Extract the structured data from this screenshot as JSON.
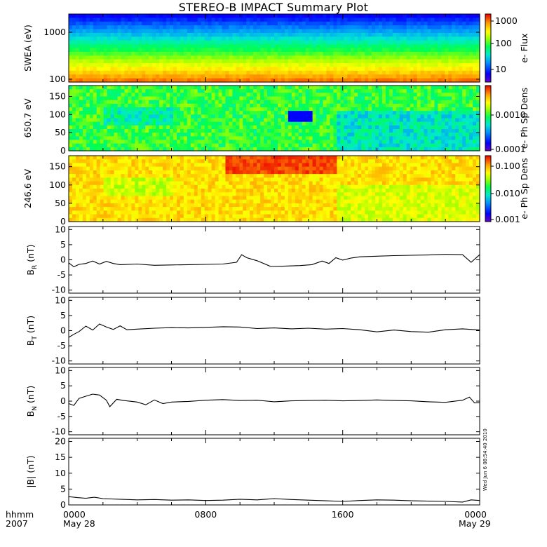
{
  "title": "STEREO-B IMPACT Summary Plot",
  "colors": {
    "line": "#000000",
    "colormap": [
      "#6a00c8",
      "#0000ff",
      "#0080ff",
      "#00e0e0",
      "#00ff60",
      "#80ff00",
      "#ffff00",
      "#ffa000",
      "#ff3000",
      "#e00000"
    ]
  },
  "footer": {
    "left_top": "hhmm",
    "left_bottom": "2007",
    "ticks": [
      {
        "top": "0000",
        "bottom": "May 28"
      },
      {
        "top": "0800",
        "bottom": ""
      },
      {
        "top": "1600",
        "bottom": ""
      },
      {
        "top": "0000",
        "bottom": "May 29"
      }
    ],
    "stamp": "Wed Jun 6 08:54:40 2010"
  },
  "chart_data": [
    {
      "type": "heatmap",
      "ylabel": "SWEA (eV)",
      "yscale": "log",
      "ylim": [
        100,
        2000
      ],
      "y_ticks": [
        "1000",
        "100"
      ],
      "colorbar": {
        "label": "e- Flux",
        "scale": "log",
        "ticks": [
          "1000",
          "100",
          "10"
        ],
        "range": [
          3,
          1500
        ]
      },
      "x_range_hours": [
        0,
        24
      ]
    },
    {
      "type": "heatmap",
      "ylabel": "650.7 eV",
      "ylim": [
        0,
        180
      ],
      "y_ticks": [
        "150",
        "100",
        "50",
        "0"
      ],
      "colorbar": {
        "label": "e- Ph Sp Dens",
        "scale": "log",
        "ticks": [
          "0.0010",
          "0.0001"
        ],
        "range": [
          0.0001,
          0.01
        ]
      },
      "x_range_hours": [
        0,
        24
      ]
    },
    {
      "type": "heatmap",
      "ylabel": "246.6 eV",
      "ylim": [
        0,
        180
      ],
      "y_ticks": [
        "150",
        "100",
        "50",
        "0"
      ],
      "colorbar": {
        "label": "e- Ph Sp Dens",
        "scale": "log",
        "ticks": [
          "0.100",
          "0.010",
          "0.001"
        ],
        "range": [
          0.001,
          0.3
        ]
      },
      "x_range_hours": [
        0,
        24
      ]
    },
    {
      "type": "line",
      "ylabel_main": "B",
      "ylabel_sub": "R",
      "ylabel_unit": "(nT)",
      "ylim": [
        -11,
        11
      ],
      "y_ticks": [
        10,
        5,
        0,
        -5,
        -10
      ],
      "x_hours": [
        0,
        0.3,
        0.6,
        1,
        1.4,
        1.8,
        2.2,
        2.6,
        3,
        4,
        5,
        6,
        7,
        8,
        9,
        9.8,
        10.1,
        10.4,
        11,
        11.8,
        12.5,
        13.5,
        14.2,
        14.8,
        15.2,
        15.6,
        16,
        16.5,
        17,
        18,
        19,
        20,
        21,
        22,
        23,
        23.5,
        24
      ],
      "y": [
        -1,
        -2.3,
        -1.5,
        -1.2,
        -0.4,
        -1.4,
        -0.5,
        -1.2,
        -1.6,
        -1.4,
        -1.8,
        -1.7,
        -1.6,
        -1.5,
        -1.4,
        -0.8,
        1.7,
        0.7,
        -0.3,
        -2.2,
        -2.1,
        -1.9,
        -1.6,
        -0.4,
        -1.2,
        0.7,
        -0.1,
        0.6,
        1.0,
        1.2,
        1.4,
        1.5,
        1.6,
        1.8,
        1.7,
        -0.8,
        1.7
      ]
    },
    {
      "type": "line",
      "ylabel_main": "B",
      "ylabel_sub": "T",
      "ylabel_unit": "(nT)",
      "ylim": [
        -11,
        11
      ],
      "y_ticks": [
        10,
        5,
        0,
        -5,
        -10
      ],
      "x_hours": [
        0,
        0.3,
        0.6,
        1,
        1.4,
        1.8,
        2.2,
        2.6,
        3,
        3.4,
        4,
        5,
        6,
        7,
        8,
        9,
        10,
        11,
        12,
        13,
        14,
        15,
        16,
        17,
        18,
        19,
        20,
        21,
        22,
        23,
        24
      ],
      "y": [
        -2.2,
        -1.2,
        -0.3,
        1.5,
        0.2,
        2.2,
        1.2,
        0.4,
        1.6,
        0.3,
        0.5,
        0.8,
        1.0,
        0.9,
        1.1,
        1.3,
        1.2,
        0.7,
        0.9,
        0.6,
        0.8,
        0.5,
        0.7,
        0.3,
        -0.4,
        0.2,
        -0.3,
        -0.5,
        0.3,
        0.6,
        0.2
      ]
    },
    {
      "type": "line",
      "ylabel_main": "B",
      "ylabel_sub": "N",
      "ylabel_unit": "(nT)",
      "ylim": [
        -11,
        11
      ],
      "y_ticks": [
        10,
        5,
        0,
        -5,
        -10
      ],
      "x_hours": [
        0,
        0.3,
        0.6,
        1,
        1.4,
        1.8,
        2.2,
        2.4,
        2.8,
        3.2,
        4,
        4.5,
        5,
        5.5,
        6,
        7,
        8,
        9,
        10,
        11,
        12,
        13,
        14,
        15,
        16,
        17,
        18,
        19,
        20,
        21,
        22,
        23,
        23.4,
        23.7,
        24
      ],
      "y": [
        -0.8,
        -1.4,
        0.9,
        1.6,
        2.3,
        2.0,
        0.3,
        -1.8,
        0.6,
        0.2,
        -0.3,
        -1.2,
        0.4,
        -0.8,
        -0.3,
        -0.1,
        0.3,
        0.5,
        0.2,
        0.3,
        -0.2,
        0.1,
        0.2,
        0.3,
        0.1,
        0.2,
        0.4,
        0.2,
        0.1,
        -0.2,
        -0.4,
        0.3,
        1.3,
        -0.6,
        -0.5
      ]
    },
    {
      "type": "line",
      "ylabel_main": "|B|",
      "ylabel_sub": "",
      "ylabel_unit": "(nT)",
      "ylim": [
        0,
        21
      ],
      "y_ticks": [
        20,
        15,
        10,
        5,
        0
      ],
      "x_hours": [
        0,
        0.5,
        1,
        1.5,
        2,
        3,
        4,
        5,
        6,
        7,
        8,
        9,
        10,
        11,
        12,
        13,
        14,
        15,
        16,
        17,
        18,
        19,
        20,
        21,
        22,
        23,
        23.5,
        24
      ],
      "y": [
        2.6,
        2.3,
        2.1,
        2.4,
        2.0,
        1.8,
        1.6,
        1.7,
        1.5,
        1.6,
        1.4,
        1.5,
        1.8,
        1.6,
        2.0,
        1.7,
        1.5,
        1.3,
        1.1,
        1.4,
        1.6,
        1.5,
        1.3,
        1.2,
        1.1,
        0.9,
        1.6,
        1.4
      ]
    }
  ]
}
